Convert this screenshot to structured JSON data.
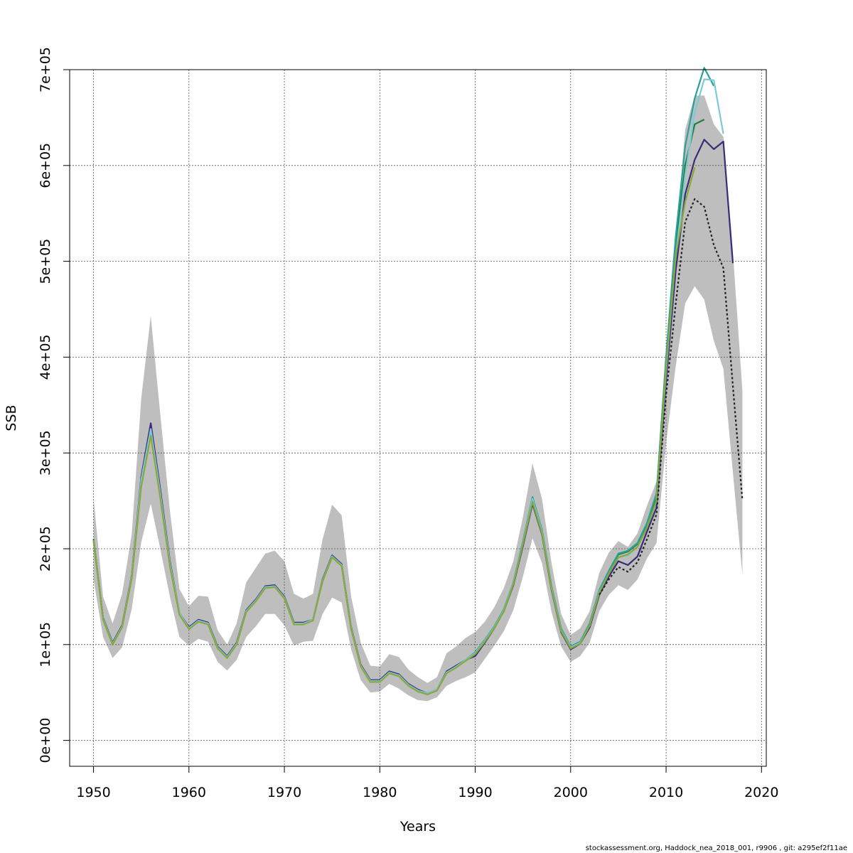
{
  "chart_data": {
    "type": "line",
    "title": "",
    "xlabel": "Years",
    "ylabel": "SSB",
    "xlim": [
      1947.5,
      2020.5
    ],
    "ylim": [
      -27000,
      700000
    ],
    "xticks": [
      1950,
      1960,
      1970,
      1980,
      1990,
      2000,
      2010,
      2020
    ],
    "xtick_labels": [
      "1950",
      "1960",
      "1970",
      "1980",
      "1990",
      "2000",
      "2010",
      "2020"
    ],
    "yticks": [
      0,
      100000,
      200000,
      300000,
      400000,
      500000,
      600000,
      700000
    ],
    "ytick_labels": [
      "0e+00",
      "1e+05",
      "2e+05",
      "3e+05",
      "4e+05",
      "5e+05",
      "6e+05",
      "7e+05"
    ],
    "grid": true,
    "band": {
      "color": "#bebebe",
      "x": [
        1950,
        1951,
        1952,
        1953,
        1954,
        1955,
        1956,
        1957,
        1958,
        1959,
        1960,
        1961,
        1962,
        1963,
        1964,
        1965,
        1966,
        1967,
        1968,
        1969,
        1970,
        1971,
        1972,
        1973,
        1974,
        1975,
        1976,
        1977,
        1978,
        1979,
        1980,
        1981,
        1982,
        1983,
        1984,
        1985,
        1986,
        1987,
        1988,
        1989,
        1990,
        1991,
        1992,
        1993,
        1994,
        1995,
        1996,
        1997,
        1998,
        1999,
        2000,
        2001,
        2002,
        2003,
        2004,
        2005,
        2006,
        2007,
        2008,
        2009,
        2010,
        2011,
        2012,
        2013,
        2014,
        2015,
        2016,
        2017,
        2018
      ],
      "upper": [
        253000,
        150000,
        122000,
        153000,
        215000,
        357000,
        443000,
        340000,
        240000,
        158000,
        140000,
        151000,
        150000,
        115000,
        100000,
        122000,
        165000,
        180000,
        195000,
        198000,
        187000,
        153000,
        148000,
        153000,
        210000,
        246000,
        235000,
        150000,
        102000,
        78000,
        77000,
        90000,
        87000,
        74000,
        66000,
        60000,
        66000,
        91000,
        98000,
        107000,
        113000,
        124000,
        139000,
        159000,
        187000,
        233000,
        289000,
        252000,
        185000,
        132000,
        110000,
        117000,
        135000,
        175000,
        196000,
        208000,
        202000,
        216000,
        245000,
        270000,
        400000,
        520000,
        637000,
        673000,
        673000,
        643000,
        630000,
        510000,
        365000
      ],
      "lower": [
        168000,
        108000,
        86000,
        97000,
        137000,
        207000,
        247000,
        200000,
        150000,
        108000,
        99000,
        106000,
        103000,
        82000,
        73000,
        84000,
        108000,
        119000,
        132000,
        132000,
        120000,
        99000,
        103000,
        104000,
        132000,
        149000,
        144000,
        95000,
        63000,
        50000,
        51000,
        59000,
        54000,
        47000,
        42000,
        41000,
        45000,
        57000,
        62000,
        66000,
        71000,
        85000,
        99000,
        114000,
        136000,
        171000,
        211000,
        185000,
        134000,
        98000,
        82000,
        88000,
        102000,
        135000,
        152000,
        162000,
        157000,
        168000,
        190000,
        206000,
        310000,
        390000,
        456000,
        474000,
        460000,
        417000,
        388000,
        280000,
        173000
      ]
    },
    "series": [
      {
        "color": "#3a2a7a",
        "x": [
          1950,
          1951,
          1952,
          1953,
          1954,
          1955,
          1956,
          1957,
          1958,
          1959,
          1960,
          1961,
          1962,
          1963,
          1964,
          1965,
          1966,
          1967,
          1968,
          1969,
          1970,
          1971,
          1972,
          1973,
          1974,
          1975,
          1976,
          1977,
          1978,
          1979,
          1980,
          1981,
          1982,
          1983,
          1984,
          1985,
          1986,
          1987,
          1988,
          1989,
          1990,
          1991,
          1992,
          1993,
          1994,
          1995,
          1996,
          1997,
          1998,
          1999,
          2000,
          2001,
          2002,
          2003,
          2004,
          2005,
          2006,
          2007,
          2008,
          2009,
          2010,
          2011,
          2012,
          2013,
          2014,
          2015,
          2016,
          2017
        ],
        "y": [
          210000,
          128000,
          102000,
          120000,
          172000,
          275000,
          331000,
          262000,
          187000,
          133000,
          118000,
          126000,
          123000,
          98000,
          88000,
          102000,
          136000,
          147000,
          161000,
          162000,
          150000,
          123000,
          123000,
          126000,
          168000,
          193000,
          184000,
          118000,
          79000,
          63000,
          63000,
          72000,
          69000,
          59000,
          53000,
          49000,
          53000,
          72000,
          78000,
          84000,
          88000,
          102000,
          117000,
          135000,
          162000,
          203000,
          247000,
          215000,
          157000,
          113000,
          95000,
          101000,
          118000,
          152000,
          171000,
          187000,
          183000,
          192000,
          218000,
          243000,
          375000,
          490000,
          570000,
          606000,
          627000,
          617000,
          625000,
          498000
        ]
      },
      {
        "color": "#1b7f3b",
        "x": [
          1950,
          1951,
          1952,
          1953,
          1954,
          1955,
          1956,
          1957,
          1958,
          1959,
          1960,
          1961,
          1962,
          1963,
          1964,
          1965,
          1966,
          1967,
          1968,
          1969,
          1970,
          1971,
          1972,
          1973,
          1974,
          1975,
          1976,
          1977,
          1978,
          1979,
          1980,
          1981,
          1982,
          1983,
          1984,
          1985,
          1986,
          1987,
          1988,
          1989,
          1990,
          1991,
          1992,
          1993,
          1994,
          1995,
          1996,
          1997,
          1998,
          1999,
          2000,
          2001,
          2002,
          2003,
          2004,
          2005,
          2006,
          2007,
          2008,
          2009,
          2010,
          2011,
          2012,
          2013,
          2014
        ],
        "y": [
          209000,
          127000,
          101000,
          119000,
          170000,
          268000,
          322000,
          256000,
          184000,
          132000,
          117000,
          125000,
          122000,
          97000,
          87000,
          101000,
          135000,
          146000,
          160000,
          161000,
          149000,
          122000,
          122000,
          126000,
          167000,
          192000,
          183000,
          117000,
          78000,
          62000,
          62000,
          71000,
          68000,
          58000,
          52000,
          49000,
          53000,
          71000,
          77000,
          84000,
          91000,
          104000,
          118000,
          136000,
          164000,
          206000,
          251000,
          219000,
          160000,
          116000,
          98000,
          103000,
          122000,
          156000,
          176000,
          194000,
          197000,
          205000,
          225000,
          255000,
          395000,
          515000,
          600000,
          643000,
          648000
        ]
      },
      {
        "color": "#2aa198",
        "x": [
          1950,
          1951,
          1952,
          1953,
          1954,
          1955,
          1956,
          1957,
          1958,
          1959,
          1960,
          1961,
          1962,
          1963,
          1964,
          1965,
          1966,
          1967,
          1968,
          1969,
          1970,
          1971,
          1972,
          1973,
          1974,
          1975,
          1976,
          1977,
          1978,
          1979,
          1980,
          1981,
          1982,
          1983,
          1984,
          1985,
          1986,
          1987,
          1988,
          1989,
          1990,
          1991,
          1992,
          1993,
          1994,
          1995,
          1996,
          1997,
          1998,
          1999,
          2000,
          2001,
          2002,
          2003,
          2004,
          2005,
          2006,
          2007,
          2008,
          2009,
          2010,
          2011,
          2012,
          2013,
          2014,
          2015
        ],
        "y": [
          208000,
          127000,
          101000,
          119000,
          170000,
          268000,
          320000,
          255000,
          183000,
          132000,
          117000,
          125000,
          122000,
          97000,
          87000,
          101000,
          135000,
          146000,
          160000,
          161000,
          149000,
          122000,
          122000,
          126000,
          167000,
          192000,
          183000,
          117000,
          78000,
          62000,
          62000,
          71000,
          68000,
          58000,
          52000,
          49000,
          53000,
          71000,
          77000,
          84000,
          92000,
          105000,
          119000,
          137000,
          165000,
          208000,
          254000,
          220000,
          161000,
          117000,
          98000,
          103000,
          122000,
          157000,
          177000,
          195000,
          198000,
          206000,
          227000,
          258000,
          400000,
          525000,
          620000,
          670000,
          702000,
          683000
        ]
      },
      {
        "color": "#7ec8dc",
        "x": [
          1950,
          1951,
          1952,
          1953,
          1954,
          1955,
          1956,
          1957,
          1958,
          1959,
          1960,
          1961,
          1962,
          1963,
          1964,
          1965,
          1966,
          1967,
          1968,
          1969,
          1970,
          1971,
          1972,
          1973,
          1974,
          1975,
          1976,
          1977,
          1978,
          1979,
          1980,
          1981,
          1982,
          1983,
          1984,
          1985,
          1986,
          1987,
          1988,
          1989,
          1990,
          1991,
          1992,
          1993,
          1994,
          1995,
          1996,
          1997,
          1998,
          1999,
          2000,
          2001,
          2002,
          2003,
          2004,
          2005,
          2006,
          2007,
          2008,
          2009,
          2010,
          2011,
          2012,
          2013,
          2014,
          2015,
          2016
        ],
        "y": [
          209000,
          127000,
          101000,
          119000,
          171000,
          272000,
          325000,
          258000,
          185000,
          133000,
          117000,
          125000,
          122000,
          97000,
          87000,
          101000,
          135000,
          146000,
          160000,
          161000,
          149000,
          122000,
          122000,
          126000,
          167000,
          192000,
          183000,
          117000,
          78000,
          62000,
          62000,
          71000,
          68000,
          58000,
          52000,
          49000,
          53000,
          71000,
          77000,
          84000,
          91000,
          104000,
          118000,
          136000,
          164000,
          206000,
          252000,
          218000,
          159000,
          115000,
          97000,
          102000,
          120000,
          155000,
          174000,
          191000,
          193000,
          202000,
          222000,
          250000,
          385000,
          505000,
          590000,
          655000,
          690000,
          689000,
          633000
        ]
      },
      {
        "color": "#8aa83a",
        "x": [
          1950,
          1951,
          1952,
          1953,
          1954,
          1955,
          1956,
          1957,
          1958,
          1959,
          1960,
          1961,
          1962,
          1963,
          1964,
          1965,
          1966,
          1967,
          1968,
          1969,
          1970,
          1971,
          1972,
          1973,
          1974,
          1975,
          1976,
          1977,
          1978,
          1979,
          1980,
          1981,
          1982,
          1983,
          1984,
          1985,
          1986,
          1987,
          1988,
          1989,
          1990,
          1991,
          1992,
          1993,
          1994,
          1995,
          1996,
          1997,
          1998,
          1999,
          2000,
          2001,
          2002,
          2003,
          2004,
          2005,
          2006,
          2007,
          2008,
          2009,
          2010,
          2011,
          2012,
          2013
        ],
        "y": [
          209000,
          126000,
          100000,
          118000,
          169000,
          265000,
          318000,
          253000,
          182000,
          131000,
          116000,
          124000,
          121000,
          96000,
          86000,
          100000,
          134000,
          145000,
          159000,
          160000,
          148000,
          121000,
          121000,
          125000,
          166000,
          191000,
          182000,
          116000,
          77000,
          61000,
          61000,
          70000,
          67000,
          57000,
          51000,
          48000,
          52000,
          70000,
          76000,
          83000,
          90000,
          103000,
          117000,
          135000,
          163000,
          205000,
          249000,
          216000,
          158000,
          114000,
          96000,
          101000,
          120000,
          154000,
          174000,
          191000,
          194000,
          202000,
          222000,
          250000,
          390000,
          505000,
          562000,
          598000
        ]
      },
      {
        "color": "#222222",
        "dashed": true,
        "x": [
          2003,
          2004,
          2005,
          2006,
          2007,
          2008,
          2009,
          2010,
          2011,
          2012,
          2013,
          2014,
          2015,
          2016,
          2017,
          2018
        ],
        "y": [
          152000,
          168000,
          181000,
          176000,
          186000,
          210000,
          236000,
          360000,
          455000,
          541000,
          565000,
          557000,
          517000,
          493000,
          370000,
          251000
        ]
      }
    ]
  },
  "footer_text": "stockassessment.org, Haddock_nea_2018_001, r9906 , git: a295ef2f11ae"
}
